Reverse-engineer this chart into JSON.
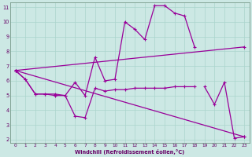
{
  "xlabel": "Windchill (Refroidissement éolien,°C)",
  "background_color": "#cce8e4",
  "grid_color": "#aad4cc",
  "line_color": "#990099",
  "xlim": [
    -0.5,
    23.5
  ],
  "ylim": [
    1.8,
    11.3
  ],
  "xticks": [
    0,
    1,
    2,
    3,
    4,
    5,
    6,
    7,
    8,
    9,
    10,
    11,
    12,
    13,
    14,
    15,
    16,
    17,
    18,
    19,
    20,
    21,
    22,
    23
  ],
  "yticks": [
    2,
    3,
    4,
    5,
    6,
    7,
    8,
    9,
    10,
    11
  ],
  "line_rising": [
    [
      0,
      6.7
    ],
    [
      23,
      8.3
    ]
  ],
  "line_falling": [
    [
      0,
      6.7
    ],
    [
      23,
      2.2
    ]
  ],
  "line_wave": [
    [
      0,
      6.7
    ],
    [
      1,
      6.1
    ],
    [
      2,
      5.1
    ],
    [
      3,
      5.1
    ],
    [
      4,
      5.1
    ],
    [
      5,
      5.0
    ],
    [
      6,
      5.9
    ],
    [
      7,
      5.0
    ],
    [
      8,
      7.6
    ],
    [
      9,
      6.0
    ],
    [
      10,
      6.1
    ],
    [
      11,
      10.0
    ],
    [
      12,
      9.5
    ],
    [
      13,
      8.8
    ],
    [
      14,
      11.1
    ],
    [
      15,
      11.1
    ],
    [
      16,
      10.6
    ],
    [
      17,
      10.4
    ],
    [
      18,
      8.3
    ]
  ],
  "line_dip": [
    [
      0,
      6.7
    ],
    [
      1,
      6.1
    ],
    [
      2,
      5.1
    ],
    [
      3,
      5.1
    ],
    [
      4,
      5.0
    ],
    [
      5,
      5.0
    ],
    [
      6,
      3.6
    ],
    [
      7,
      3.5
    ],
    [
      8,
      5.5
    ],
    [
      9,
      5.3
    ],
    [
      10,
      5.4
    ],
    [
      11,
      5.4
    ],
    [
      12,
      5.5
    ],
    [
      13,
      5.5
    ],
    [
      14,
      5.5
    ],
    [
      15,
      5.5
    ],
    [
      16,
      5.6
    ],
    [
      17,
      5.6
    ],
    [
      18,
      5.6
    ]
  ],
  "line_right": [
    [
      19,
      5.6
    ],
    [
      20,
      4.4
    ],
    [
      21,
      5.9
    ],
    [
      22,
      2.1
    ],
    [
      23,
      2.2
    ]
  ]
}
